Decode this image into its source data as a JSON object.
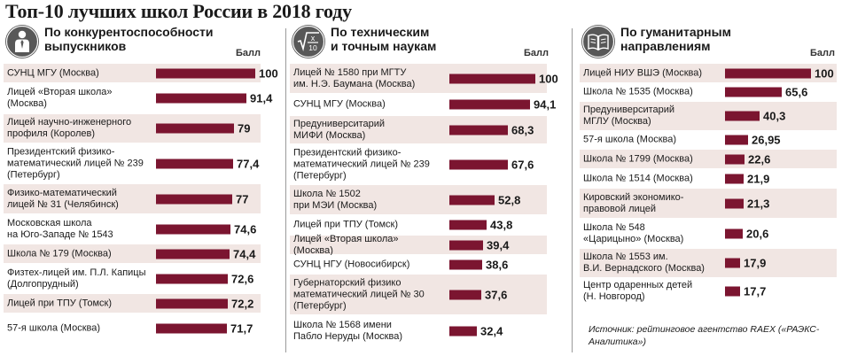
{
  "title": "Топ-10 лучших школ России в 2018 году",
  "score_header": "Балл",
  "source": "Источник: рейтинговое агентство RAEX («РАЭКС-Аналитика»)",
  "colors": {
    "bar": "#7b1530",
    "row_shade": "#f1e6e3",
    "icon": "#585858"
  },
  "chart_data": [
    {
      "type": "bar",
      "title": "По конкурентоспособности\nвыпускников",
      "icon": "person-tie-icon",
      "xlim": [
        0,
        100
      ],
      "categories": [
        "СУНЦ МГУ (Москва)",
        "Лицей «Вторая школа»\n(Москва)",
        "Лицей научно-инженерного\nпрофиля (Королев)",
        "Президентский физико-\nматематический лицей № 239\n(Петербург)",
        "Физико-математический\nлицей № 31 (Челябинск)",
        "Московская школа\nна Юго-Западе № 1543",
        "Школа № 179 (Москва)",
        "Физтех-лицей им. П.Л. Капицы\n(Долгопрудный)",
        "Лицей при ТПУ (Томск)",
        "57-я школа (Москва)"
      ],
      "values": [
        100,
        91.4,
        79,
        77.4,
        77,
        74.6,
        74.4,
        72.6,
        72.2,
        71.7
      ],
      "value_labels": [
        "100",
        "91,4",
        "79",
        "77,4",
        "77",
        "74,6",
        "74,4",
        "72,6",
        "72,2",
        "71,7"
      ]
    },
    {
      "type": "bar",
      "title": "По техническим\nи точным наукам",
      "icon": "sqrt-x-over-10-icon",
      "xlim": [
        0,
        100
      ],
      "categories": [
        "Лицей № 1580 при МГТУ\nим. Н.Э. Баумана (Москва)",
        "СУНЦ МГУ (Москва)",
        "Предуниверситарий\nМИФИ (Москва)",
        "Президентский физико-\nматематический лицей № 239\n(Петербург)",
        "Школа № 1502\nпри МЭИ (Москва)",
        "Лицей при ТПУ (Томск)",
        "Лицей «Вторая школа» (Москва)",
        "СУНЦ НГУ (Новосибирск)",
        "Губернаторский физико\nматематический лицей № 30\n(Петербург)",
        "Школа № 1568 имени\nПабло Неруды (Москва)"
      ],
      "values": [
        100,
        94.1,
        68.3,
        67.6,
        52.8,
        43.8,
        39.4,
        38.6,
        37.6,
        32.4
      ],
      "value_labels": [
        "100",
        "94,1",
        "68,3",
        "67,6",
        "52,8",
        "43,8",
        "39,4",
        "38,6",
        "37,6",
        "32,4"
      ]
    },
    {
      "type": "bar",
      "title": "По гуманитарным\nнаправлениям",
      "icon": "open-book-icon",
      "xlim": [
        0,
        100
      ],
      "categories": [
        "Лицей НИУ ВШЭ (Москва)",
        "Школа № 1535 (Москва)",
        "Предуниверситарий\nМГЛУ (Москва)",
        "57-я школа (Москва)",
        "Школа № 1799 (Москва)",
        "Школа № 1514 (Москва)",
        "Кировский экономико-\nправовой лицей",
        "Школа № 548\n«Царицыно» (Москва)",
        "Школа № 1553 им.\nВ.И. Вернадского (Москва)",
        "Центр одаренных детей\n(Н. Новгород)"
      ],
      "values": [
        100,
        65.6,
        40.3,
        26.95,
        22.6,
        21.9,
        21.3,
        20.6,
        17.9,
        17.7
      ],
      "value_labels": [
        "100",
        "65,6",
        "40,3",
        "26,95",
        "22,6",
        "21,9",
        "21,3",
        "20,6",
        "17,9",
        "17,7"
      ]
    }
  ]
}
